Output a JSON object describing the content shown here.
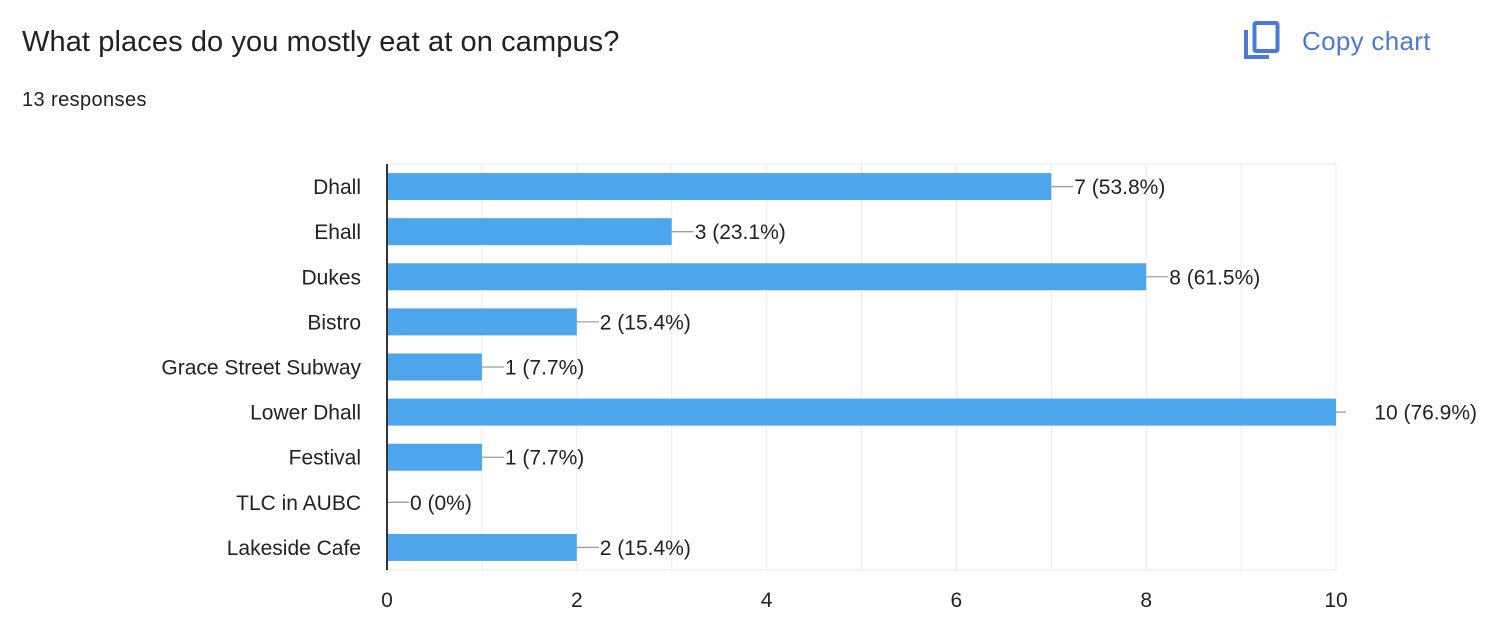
{
  "header": {
    "title": "What places do you mostly eat at on campus?",
    "responses": "13 responses",
    "copy_label": "Copy chart",
    "copy_icon": "copy-icon"
  },
  "colors": {
    "bar": "#4da6ec",
    "accent": "#1a73e8",
    "grid": "#ebebeb",
    "axis": "#333333",
    "leader": "#9e9e9e"
  },
  "chart_data": {
    "type": "bar",
    "orientation": "horizontal",
    "title": "What places do you mostly eat at on campus?",
    "xlabel": "",
    "ylabel": "",
    "xlim": [
      0,
      10
    ],
    "x_ticks": [
      0,
      2,
      4,
      6,
      8,
      10
    ],
    "categories": [
      "Dhall",
      "Ehall",
      "Dukes",
      "Bistro",
      "Grace Street Subway",
      "Lower Dhall",
      "Festival",
      "TLC in AUBC",
      "Lakeside Cafe"
    ],
    "values": [
      7,
      3,
      8,
      2,
      1,
      10,
      1,
      0,
      2
    ],
    "labels": [
      "7 (53.8%)",
      "3 (23.1%)",
      "8 (61.5%)",
      "2 (15.4%)",
      "1 (7.7%)",
      "10 (76.9%)",
      "1 (7.7%)",
      "0 (0%)",
      "2 (15.4%)"
    ],
    "grid": true
  }
}
